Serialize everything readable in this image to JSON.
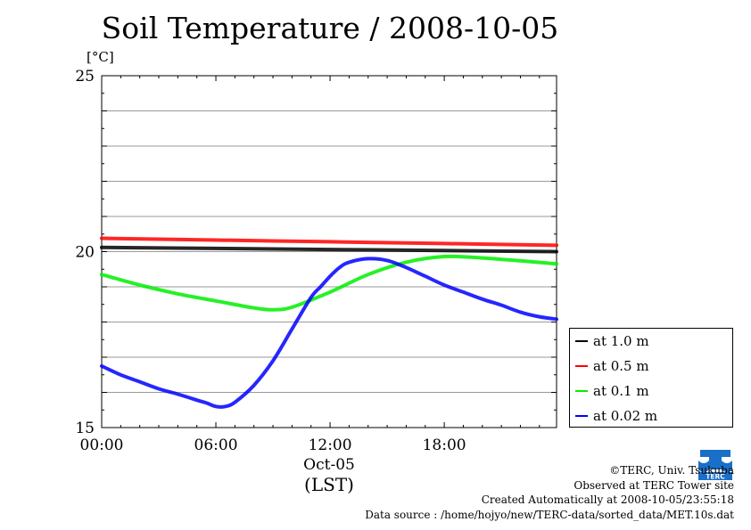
{
  "title": "Soil Temperature / 2008-10-05",
  "unit_label": "[°C]",
  "date_label": "Oct-05",
  "tz_label": "(LST)",
  "credits": {
    "copyright": "©TERC, Univ. Tsukuba",
    "site": "Observed at TERC Tower site",
    "created": "Created Automatically at 2008-10-05/23:55:18",
    "source": "Data source : /home/hojyo/new/TERC-data/sorted_data/MET.10s.dat"
  },
  "logo_text": "TERC",
  "chart_data": {
    "type": "line",
    "title": "Soil Temperature / 2008-10-05",
    "ylabel": "[°C]",
    "xlabel": "(LST)",
    "xlim": [
      0,
      23.9
    ],
    "ylim": [
      15,
      25
    ],
    "xticks": [
      {
        "value": 0,
        "label": "00:00"
      },
      {
        "value": 6,
        "label": "06:00"
      },
      {
        "value": 12,
        "label": "12:00"
      },
      {
        "value": 18,
        "label": "18:00"
      }
    ],
    "yticks": [
      {
        "value": 15,
        "label": "15"
      },
      {
        "value": 20,
        "label": "20"
      },
      {
        "value": 25,
        "label": "25"
      }
    ],
    "grid": true,
    "legend_position": "right-bottom",
    "series": [
      {
        "name": "at 1.0 m",
        "color": "#000000",
        "x": [
          0,
          6,
          12,
          18,
          23.9
        ],
        "y": [
          20.12,
          20.09,
          20.06,
          20.03,
          20.0
        ]
      },
      {
        "name": "at 0.5 m",
        "color": "#ff0000",
        "x": [
          0,
          6,
          12,
          18,
          23.9
        ],
        "y": [
          20.38,
          20.33,
          20.28,
          20.23,
          20.18
        ]
      },
      {
        "name": "at 0.1 m",
        "color": "#00ee00",
        "x": [
          0,
          2,
          4,
          6,
          8,
          9,
          10,
          12,
          14,
          16,
          18,
          20,
          22,
          23.9
        ],
        "y": [
          19.35,
          19.05,
          18.8,
          18.6,
          18.4,
          18.35,
          18.42,
          18.85,
          19.35,
          19.7,
          19.86,
          19.82,
          19.74,
          19.65
        ]
      },
      {
        "name": "at 0.02 m",
        "color": "#0000ff",
        "x": [
          0,
          1,
          2,
          3,
          4,
          5,
          5.5,
          6,
          6.5,
          7,
          8,
          9,
          10,
          11,
          11.5,
          12,
          12.5,
          13,
          14,
          15,
          16,
          17,
          18,
          19,
          20,
          21,
          22,
          23,
          23.9
        ],
        "y": [
          16.75,
          16.5,
          16.3,
          16.1,
          15.95,
          15.78,
          15.7,
          15.6,
          15.6,
          15.72,
          16.2,
          16.9,
          17.8,
          18.7,
          19.0,
          19.3,
          19.55,
          19.7,
          19.8,
          19.75,
          19.55,
          19.3,
          19.05,
          18.85,
          18.65,
          18.48,
          18.28,
          18.15,
          18.08
        ]
      }
    ]
  }
}
